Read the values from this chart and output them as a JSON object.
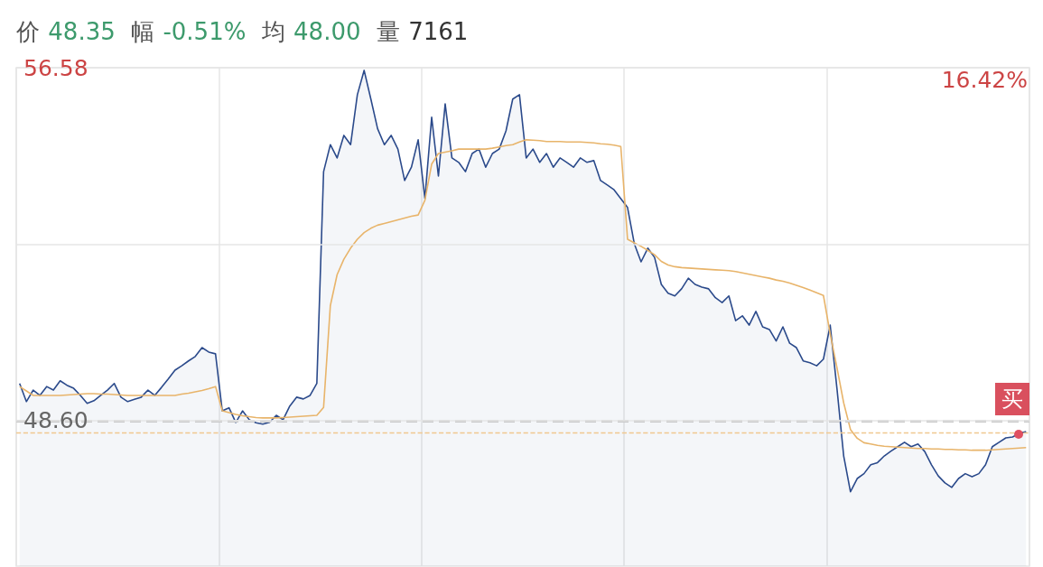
{
  "chart_data": {
    "type": "area",
    "title": "价 48.35 幅 -0.51% 均 48.00 量 7161",
    "categories": [
      null,
      null,
      null,
      null,
      null,
      null,
      null,
      null,
      null,
      null,
      null,
      null,
      null,
      null,
      null,
      null,
      null,
      null,
      null,
      null,
      null,
      null,
      null,
      null,
      null,
      null,
      null,
      null,
      null,
      null,
      null,
      null,
      null,
      null,
      null,
      null,
      null,
      null,
      null,
      null,
      null,
      null,
      null,
      null,
      null,
      null,
      null,
      null,
      null,
      null,
      null,
      null,
      null,
      null,
      null,
      null,
      null,
      null,
      null,
      null,
      null,
      null,
      null,
      null,
      null,
      null,
      null,
      null,
      null,
      null,
      null,
      null,
      null,
      null,
      null,
      null,
      null,
      null,
      null,
      null,
      null,
      null,
      null,
      null,
      null,
      null,
      null,
      null,
      null,
      null,
      null,
      null,
      null,
      null,
      null,
      null,
      null,
      null,
      null,
      null,
      null,
      null,
      null,
      null,
      null,
      null,
      null,
      null,
      null,
      null,
      null,
      null,
      null,
      null,
      null,
      null,
      null,
      null,
      null,
      null,
      null,
      null,
      null,
      null,
      null,
      null,
      null,
      null,
      null,
      null,
      null,
      null,
      null,
      null,
      null,
      null,
      null,
      null,
      null,
      null,
      null,
      null,
      null,
      null,
      null,
      null,
      null,
      null,
      null,
      null
    ],
    "series": [
      {
        "color": "#2b4a8b",
        "values": [
          49.44,
          49.03,
          49.29,
          49.17,
          49.37,
          49.29,
          49.5,
          49.4,
          49.33,
          49.17,
          48.99,
          49.05,
          49.17,
          49.29,
          49.44,
          49.13,
          49.03,
          49.08,
          49.13,
          49.29,
          49.17,
          49.35,
          49.54,
          49.74,
          49.84,
          49.95,
          50.05,
          50.25,
          50.15,
          50.11,
          48.82,
          48.89,
          48.56,
          48.82,
          48.62,
          48.55,
          48.52,
          48.56,
          48.72,
          48.62,
          48.93,
          49.13,
          49.09,
          49.17,
          49.44,
          54.23,
          54.84,
          54.54,
          55.05,
          54.84,
          55.97,
          56.52,
          55.87,
          55.2,
          54.84,
          55.05,
          54.74,
          54.03,
          54.33,
          54.95,
          53.62,
          55.46,
          54.13,
          55.76,
          54.54,
          54.44,
          54.23,
          54.64,
          54.74,
          54.33,
          54.64,
          54.74,
          55.15,
          55.87,
          55.97,
          54.54,
          54.74,
          54.44,
          54.64,
          54.33,
          54.54,
          54.44,
          54.33,
          54.54,
          54.44,
          54.48,
          54.03,
          53.93,
          53.82,
          53.62,
          53.42,
          52.6,
          52.19,
          52.5,
          52.29,
          51.68,
          51.48,
          51.42,
          51.58,
          51.82,
          51.68,
          51.62,
          51.58,
          51.38,
          51.27,
          51.42,
          50.86,
          50.97,
          50.76,
          51.07,
          50.72,
          50.66,
          50.4,
          50.72,
          50.35,
          50.25,
          49.95,
          49.91,
          49.84,
          49.99,
          50.76,
          49.33,
          47.8,
          46.99,
          47.29,
          47.4,
          47.6,
          47.65,
          47.8,
          47.91,
          48.01,
          48.11,
          48.01,
          48.07,
          47.9,
          47.6,
          47.35,
          47.19,
          47.09,
          47.29,
          47.4,
          47.33,
          47.4,
          47.6,
          48.01,
          48.11,
          48.21,
          48.23,
          48.31,
          48.35
        ]
      },
      {
        "type": "line",
        "color": "#e8b46a",
        "values": [
          49.37,
          49.27,
          49.17,
          49.17,
          49.17,
          49.17,
          49.17,
          49.18,
          49.19,
          49.2,
          49.21,
          49.21,
          49.2,
          49.2,
          49.19,
          49.18,
          49.17,
          49.17,
          49.17,
          49.17,
          49.17,
          49.17,
          49.17,
          49.17,
          49.2,
          49.22,
          49.25,
          49.28,
          49.32,
          49.37,
          48.82,
          48.78,
          48.74,
          48.71,
          48.69,
          48.67,
          48.66,
          48.66,
          48.66,
          48.67,
          48.68,
          48.69,
          48.7,
          48.71,
          48.72,
          48.9,
          51.2,
          51.9,
          52.25,
          52.5,
          52.7,
          52.85,
          52.95,
          53.02,
          53.06,
          53.1,
          53.14,
          53.18,
          53.22,
          53.25,
          53.58,
          54.4,
          54.64,
          54.67,
          54.7,
          54.74,
          54.74,
          54.74,
          54.74,
          54.74,
          54.76,
          54.79,
          54.82,
          54.84,
          54.9,
          54.95,
          54.94,
          54.93,
          54.91,
          54.91,
          54.91,
          54.9,
          54.9,
          54.9,
          54.89,
          54.88,
          54.86,
          54.85,
          54.83,
          54.8,
          52.7,
          52.62,
          52.54,
          52.45,
          52.35,
          52.2,
          52.12,
          52.08,
          52.06,
          52.05,
          52.04,
          52.03,
          52.02,
          52.01,
          52.0,
          51.99,
          51.97,
          51.94,
          51.91,
          51.88,
          51.85,
          51.82,
          51.78,
          51.75,
          51.71,
          51.66,
          51.61,
          51.55,
          51.49,
          51.43,
          50.56,
          49.8,
          49.0,
          48.4,
          48.2,
          48.1,
          48.07,
          48.04,
          48.02,
          48.01,
          48.0,
          47.99,
          47.98,
          47.97,
          47.97,
          47.96,
          47.96,
          47.95,
          47.95,
          47.94,
          47.94,
          47.93,
          47.93,
          47.93,
          47.94,
          47.95,
          47.96,
          47.97,
          47.98,
          47.99
        ]
      }
    ],
    "ylim": [
      45.31,
      56.58
    ],
    "yticks": [
      {
        "value": 48.6,
        "label": "48.60"
      },
      {
        "value": 52.59,
        "label": null
      },
      56.58
    ],
    "ref_lines": [
      {
        "axis": "y",
        "value": 48.6,
        "color": "#c8c8c8",
        "line_style": "dashed"
      },
      {
        "axis": "y",
        "value": 48.33,
        "color": "#f0c890",
        "line_style": "dashed"
      }
    ],
    "annotations": [
      "16.42%",
      {
        "text": "买",
        "y": 48.35
      }
    ],
    "grid": true,
    "marker": "none",
    "tick_labels": "y"
  }
}
